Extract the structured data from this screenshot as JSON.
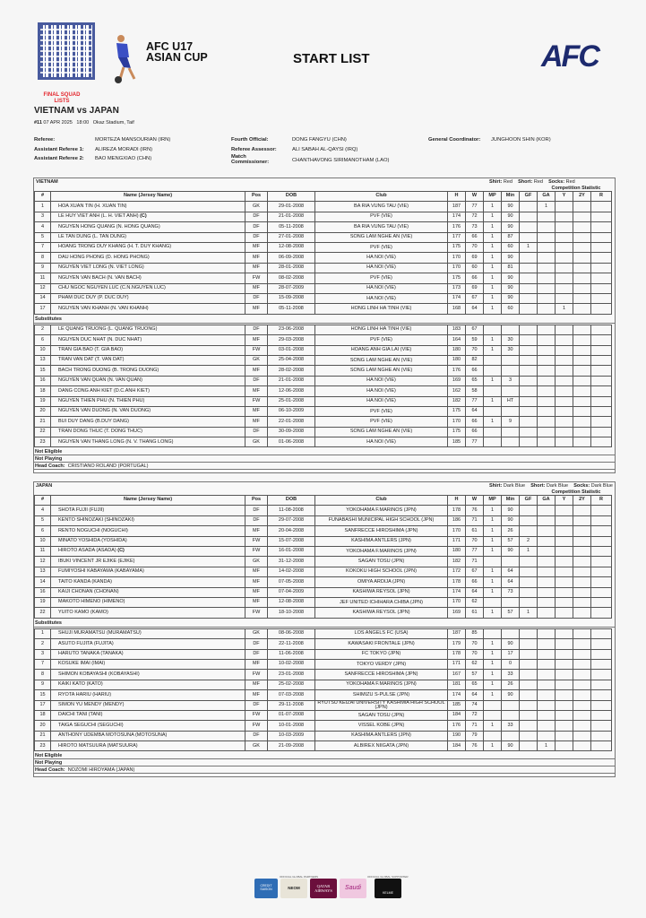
{
  "header": {
    "event_line1": "AFC U17",
    "event_line2": "ASIAN CUP",
    "title": "START LIST",
    "org_logo": "AFC",
    "qr": "qr-code",
    "badge": "FINAL SQUAD LISTS"
  },
  "match": {
    "title": "VIETNAM vs JAPAN",
    "number": "#11",
    "date": "07 APR 2025",
    "time": "18:00",
    "venue": "Okaz Stadium, Taif"
  },
  "officials": [
    {
      "label": "Referee:",
      "value": "MORTEZA MANSOURIAN (IRN)"
    },
    {
      "label": "Assistant Referee 1:",
      "value": "ALIREZA MORADI (IRN)"
    },
    {
      "label": "Assistant Referee 2:",
      "value": "BAO MENGXIAO (CHN)"
    },
    {
      "label": "Fourth Official:",
      "value": "DONG FANGYU (CHN)"
    },
    {
      "label": "Referee Assessor:",
      "value": "ALI SABAH AL-QAYSI (IRQ)"
    },
    {
      "label": "Match Commissioner:",
      "value": "CHANTHAVONG SIRIMANOTHAM (LAO)"
    },
    {
      "label": "General Coordinator:",
      "value": "JUNGHOON SHIN (KOR)"
    }
  ],
  "columns": [
    "#",
    "Name (Jersey Name)",
    "Pos",
    "DOB",
    "Club",
    "H",
    "W",
    "MP",
    "Min",
    "GF",
    "GA",
    "Y",
    "2Y",
    "R"
  ],
  "labels": {
    "competition_statistic": "Competition Statistic",
    "substitutes": "Substitutes",
    "not_eligible": "Not Eligible",
    "not_playing": "Not Playing",
    "head_coach": "Head Coach:",
    "shirt": "Shirt:",
    "short": "Short:",
    "socks": "Socks:",
    "captain": "(C)"
  },
  "teams": [
    {
      "name": "VIETNAM",
      "shirt": "Red",
      "short": "Red",
      "socks": "Red",
      "captain_no": "3",
      "head_coach": "CRISTIANO ROLAND (PORTUGAL)",
      "starters": [
        [
          "1",
          "HOA XUAN TIN (H. XUAN TIN)",
          "GK",
          "29-01-2008",
          "BA RIA VUNG TAU (VIE)",
          "187",
          "77",
          "1",
          "90",
          "",
          "1",
          "",
          "",
          ""
        ],
        [
          "3",
          "LE HUY VIET ANH (L. H. VIET ANH)",
          "DF",
          "21-01-2008",
          "PVF (VIE)",
          "174",
          "72",
          "1",
          "90",
          "",
          "",
          "",
          "",
          ""
        ],
        [
          "4",
          "NGUYEN HONG QUANG (N. HONG QUANG)",
          "DF",
          "05-11-2008",
          "BA RIA VUNG TAU (VIE)",
          "176",
          "73",
          "1",
          "90",
          "",
          "",
          "",
          "",
          ""
        ],
        [
          "5",
          "LE TAN DUNG (L. TAN DUNG)",
          "DF",
          "27-01-2008",
          "SONG LAM NGHE AN (VIE)",
          "177",
          "66",
          "1",
          "87",
          "",
          "",
          "",
          "",
          ""
        ],
        [
          "7",
          "HOANG TRONG DUY KHANG (H. T. DUY KHANG)",
          "MF",
          "12-08-2008",
          "PVF (VIE)",
          "175",
          "70",
          "1",
          "60",
          "1",
          "",
          "",
          "",
          ""
        ],
        [
          "8",
          "DAU HONG PHONG (D. HONG PHONG)",
          "MF",
          "06-09-2008",
          "HA NOI (VIE)",
          "170",
          "69",
          "1",
          "90",
          "",
          "",
          "",
          "",
          ""
        ],
        [
          "9",
          "NGUYEN VIET LONG (N. VIET LONG)",
          "MF",
          "28-01-2008",
          "HA NOI (VIE)",
          "170",
          "60",
          "1",
          "81",
          "",
          "",
          "",
          "",
          ""
        ],
        [
          "11",
          "NGUYEN VAN BACH (N. VAN BACH)",
          "FW",
          "08-02-2008",
          "PVF (VIE)",
          "175",
          "66",
          "1",
          "90",
          "",
          "",
          "",
          "",
          ""
        ],
        [
          "12",
          "CHU NGOC NGUYEN LUC (C.N.NGUYEN LUC)",
          "MF",
          "28-07-2009",
          "HA NOI (VIE)",
          "173",
          "69",
          "1",
          "90",
          "",
          "",
          "",
          "",
          ""
        ],
        [
          "14",
          "PHAM DUC DUY (P. DUC DUY)",
          "DF",
          "15-09-2008",
          "HA NOI (VIE)",
          "174",
          "67",
          "1",
          "90",
          "",
          "",
          "",
          "",
          ""
        ],
        [
          "17",
          "NGUYEN VAN KHANH (N. VAN KHANH)",
          "MF",
          "05-11-2008",
          "HONG LINH HA TINH (VIE)",
          "168",
          "64",
          "1",
          "60",
          "",
          "",
          "1",
          "",
          ""
        ]
      ],
      "substitutes": [
        [
          "2",
          "LE QUANG TRUONG (L. QUANG TRUONG)",
          "DF",
          "23-06-2008",
          "HONG LINH HA TINH (VIE)",
          "183",
          "67",
          "",
          "",
          "",
          "",
          "",
          "",
          ""
        ],
        [
          "6",
          "NGUYEN DUC NHAT (N. DUC NHAT)",
          "MF",
          "29-03-2008",
          "PVF (VIE)",
          "164",
          "59",
          "1",
          "30",
          "",
          "",
          "",
          "",
          ""
        ],
        [
          "10",
          "TRAN GIA BAO (T. GIA BAO)",
          "FW",
          "03-01-2008",
          "HOANG ANH GIA LAI (VIE)",
          "180",
          "70",
          "1",
          "30",
          "",
          "",
          "",
          "",
          ""
        ],
        [
          "13",
          "TRAN VAN DAT (T. VAN DAT)",
          "GK",
          "25-04-2008",
          "SONG LAM NGHE AN (VIE)",
          "180",
          "82",
          "",
          "",
          "",
          "",
          "",
          "",
          ""
        ],
        [
          "15",
          "BACH TRONG DUONG (B. TRONG DUONG)",
          "MF",
          "28-02-2008",
          "SONG LAM NGHE AN (VIE)",
          "176",
          "66",
          "",
          "",
          "",
          "",
          "",
          "",
          ""
        ],
        [
          "16",
          "NGUYEN VAN QUAN (N. VAN QUAN)",
          "DF",
          "21-01-2008",
          "HA NOI (VIE)",
          "169",
          "65",
          "1",
          "3",
          "",
          "",
          "",
          "",
          ""
        ],
        [
          "18",
          "DANG CONG ANH KIET (D.C.ANH KIET)",
          "MF",
          "12-06-2008",
          "HA NOI (VIE)",
          "162",
          "58",
          "",
          "",
          "",
          "",
          "",
          "",
          ""
        ],
        [
          "19",
          "NGUYEN THIEN PHU (N. THIEN PHU)",
          "FW",
          "25-01-2008",
          "HA NOI (VIE)",
          "182",
          "77",
          "1",
          "HT",
          "",
          "",
          "",
          "",
          ""
        ],
        [
          "20",
          "NGUYEN VAN DUONG (N. VAN DUONG)",
          "MF",
          "06-10-2009",
          "PVF (VIE)",
          "175",
          "64",
          "",
          "",
          "",
          "",
          "",
          "",
          ""
        ],
        [
          "21",
          "BUI DUY DANG (B.DUY DANG)",
          "MF",
          "22-01-2008",
          "PVF (VIE)",
          "170",
          "66",
          "1",
          "9",
          "",
          "",
          "",
          "",
          ""
        ],
        [
          "22",
          "TRAN DONG THUC (T. DONG THUC)",
          "DF",
          "30-09-2008",
          "SONG LAM NGHE AN (VIE)",
          "175",
          "66",
          "",
          "",
          "",
          "",
          "",
          "",
          ""
        ],
        [
          "23",
          "NGUYEN VAN THANG LONG (N. V. THANG LONG)",
          "GK",
          "01-06-2008",
          "HA NOI (VIE)",
          "185",
          "77",
          "",
          "",
          "",
          "",
          "",
          "",
          ""
        ]
      ]
    },
    {
      "name": "JAPAN",
      "shirt": "Dark Blue",
      "short": "Dark Blue",
      "socks": "Dark Blue",
      "captain_no": "11",
      "head_coach": "NOZOMI HIROYAMA (JAPAN)",
      "starters": [
        [
          "4",
          "SHOTA FUJII (FUJII)",
          "DF",
          "11-08-2008",
          "YOKOHAMA F.MARINOS (JPN)",
          "178",
          "76",
          "1",
          "90",
          "",
          "",
          "",
          "",
          ""
        ],
        [
          "5",
          "KENTO SHINOZAKI (SHINOZAKI)",
          "DF",
          "29-07-2008",
          "FUNABASHI MUNICIPAL HIGH SCHOOL (JPN)",
          "186",
          "71",
          "1",
          "90",
          "",
          "",
          "",
          "",
          ""
        ],
        [
          "6",
          "RENTO NOGUCHI (NOGUCHI)",
          "MF",
          "20-04-2008",
          "SANFRECCE HIROSHIMA (JPN)",
          "170",
          "61",
          "1",
          "26",
          "",
          "",
          "",
          "",
          ""
        ],
        [
          "10",
          "MINATO YOSHIDA (YOSHIDA)",
          "FW",
          "15-07-2008",
          "KASHIMA ANTLERS (JPN)",
          "171",
          "70",
          "1",
          "57",
          "2",
          "",
          "",
          "",
          ""
        ],
        [
          "11",
          "HIROTO ASADA (ASADA)",
          "FW",
          "16-01-2008",
          "YOKOHAMA F.MARINOS (JPN)",
          "180",
          "77",
          "1",
          "90",
          "1",
          "",
          "",
          "",
          ""
        ],
        [
          "12",
          "IBUKI VINCENT JR EJIKE (EJIKE)",
          "GK",
          "31-12-2008",
          "SAGAN TOSU (JPN)",
          "182",
          "71",
          "",
          "",
          "",
          "",
          "",
          "",
          ""
        ],
        [
          "13",
          "FUMIYOSHI KABAYAMA (KABAYAMA)",
          "MF",
          "14-02-2008",
          "KOKOKU HIGH SCHOOL (JPN)",
          "172",
          "67",
          "1",
          "64",
          "",
          "",
          "",
          "",
          ""
        ],
        [
          "14",
          "TAITO KANDA (KANDA)",
          "MF",
          "07-05-2008",
          "OMIYA ARDIJA (JPN)",
          "178",
          "66",
          "1",
          "64",
          "",
          "",
          "",
          "",
          ""
        ],
        [
          "16",
          "KAIJI CHONAN (CHONAN)",
          "MF",
          "07-04-2009",
          "KASHIWA REYSOL (JPN)",
          "174",
          "64",
          "1",
          "73",
          "",
          "",
          "",
          "",
          ""
        ],
        [
          "19",
          "MAKOTO HIMENO (HIMENO)",
          "MF",
          "12-08-2008",
          "JEF UNITED ICHIHARA CHIBA (JPN)",
          "170",
          "62",
          "",
          "",
          "",
          "",
          "",
          "",
          ""
        ],
        [
          "22",
          "YUITO KAMO (KAMO)",
          "FW",
          "18-10-2008",
          "KASHIWA REYSOL (JPN)",
          "169",
          "61",
          "1",
          "57",
          "1",
          "",
          "",
          "",
          ""
        ]
      ],
      "substitutes": [
        [
          "1",
          "SHUJI MURAMATSU (MURAMATSU)",
          "GK",
          "08-06-2008",
          "LOS ANGELS FC (USA)",
          "187",
          "85",
          "",
          "",
          "",
          "",
          "",
          "",
          ""
        ],
        [
          "2",
          "ASUTO FUJITA (FUJITA)",
          "DF",
          "22-11-2008",
          "KAWASAKI FRONTALE (JPN)",
          "179",
          "70",
          "1",
          "90",
          "",
          "",
          "",
          "",
          ""
        ],
        [
          "3",
          "HARUTO TANAKA (TANAKA)",
          "DF",
          "11-06-2008",
          "FC TOKYO (JPN)",
          "178",
          "70",
          "1",
          "17",
          "",
          "",
          "",
          "",
          ""
        ],
        [
          "7",
          "KOSUKE IMAI (IMAI)",
          "MF",
          "10-02-2008",
          "TOKYO VERDY (JPN)",
          "171",
          "62",
          "1",
          "0",
          "",
          "",
          "",
          "",
          ""
        ],
        [
          "8",
          "SHIMON KOBAYASHI (KOBAYASHI)",
          "FW",
          "23-01-2008",
          "SANFRECCE HIROSHIMA (JPN)",
          "167",
          "57",
          "1",
          "33",
          "",
          "",
          "",
          "",
          ""
        ],
        [
          "9",
          "KAIKI KATO (KATO)",
          "MF",
          "25-02-2008",
          "YOKOHAMA F.MARINOS (JPN)",
          "181",
          "65",
          "1",
          "26",
          "",
          "",
          "",
          "",
          ""
        ],
        [
          "15",
          "RYOTA HARIU (HARIU)",
          "MF",
          "07-03-2008",
          "SHIMIZU S-PULSE (JPN)",
          "174",
          "64",
          "1",
          "90",
          "",
          "",
          "",
          "",
          ""
        ],
        [
          "17",
          "SIMON YU MENDY (MENDY)",
          "DF",
          "29-11-2008",
          "RYUTSU KEIZAI UNIVERSITY KASHIWA HIGH SCHOOL (JPN)",
          "185",
          "74",
          "",
          "",
          "",
          "",
          "",
          "",
          ""
        ],
        [
          "18",
          "DAICHI TANI (TANI)",
          "FW",
          "01-07-2008",
          "SAGAN TOSU (JPN)",
          "184",
          "72",
          "",
          "",
          "",
          "",
          "",
          "",
          ""
        ],
        [
          "20",
          "TAIGA SEGUCHI (SEGUCHI)",
          "FW",
          "10-01-2008",
          "VISSEL KOBE (JPN)",
          "176",
          "71",
          "1",
          "33",
          "",
          "",
          "",
          "",
          ""
        ],
        [
          "21",
          "ANTHONY UDEMBA MOTOSUNA (MOTOSUNA)",
          "DF",
          "10-03-2009",
          "KASHIMA ANTLERS (JPN)",
          "190",
          "79",
          "",
          "",
          "",
          "",
          "",
          "",
          ""
        ],
        [
          "23",
          "HIROTO MATSUURA (MATSUURA)",
          "GK",
          "21-09-2008",
          "ALBIREX NIIGATA (JPN)",
          "184",
          "76",
          "1",
          "90",
          "",
          "1",
          "",
          "",
          ""
        ]
      ]
    }
  ],
  "sponsors": {
    "partners_label": "OFFICIAL GLOBAL PARTNERS",
    "supporter_label": "OFFICIAL GLOBAL SUPPORTER",
    "logos": [
      "CREDIT SAISON",
      "NEOM",
      "QATAR AIRWAYS",
      "Saudi",
      "KELME"
    ]
  }
}
